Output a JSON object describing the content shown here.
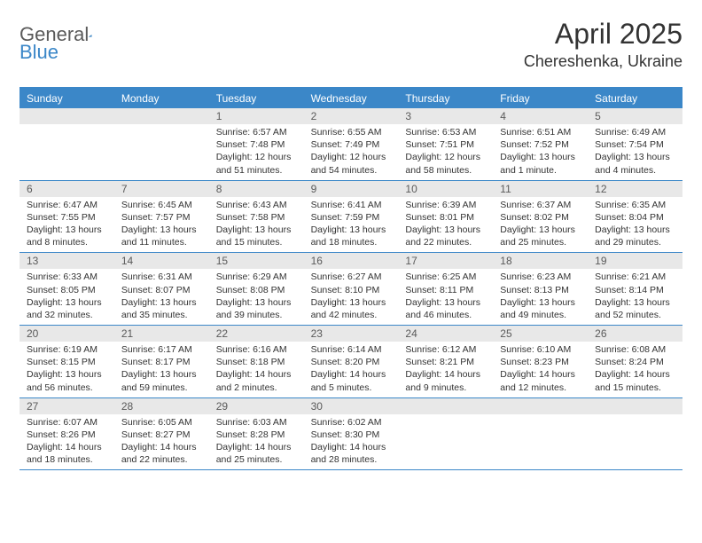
{
  "logo": {
    "word1": "General",
    "word2": "Blue"
  },
  "title": "April 2025",
  "location": "Chereshenka, Ukraine",
  "colors": {
    "header_bg": "#3b87c8",
    "header_text": "#ffffff",
    "daynum_bg": "#e8e8e8",
    "text": "#333333",
    "logo_gray": "#5a5a5a",
    "logo_blue": "#3b87c8"
  },
  "day_names": [
    "Sunday",
    "Monday",
    "Tuesday",
    "Wednesday",
    "Thursday",
    "Friday",
    "Saturday"
  ],
  "weeks": [
    [
      {
        "num": "",
        "empty": true
      },
      {
        "num": "",
        "empty": true
      },
      {
        "num": "1",
        "sunrise": "Sunrise: 6:57 AM",
        "sunset": "Sunset: 7:48 PM",
        "daylight": "Daylight: 12 hours and 51 minutes."
      },
      {
        "num": "2",
        "sunrise": "Sunrise: 6:55 AM",
        "sunset": "Sunset: 7:49 PM",
        "daylight": "Daylight: 12 hours and 54 minutes."
      },
      {
        "num": "3",
        "sunrise": "Sunrise: 6:53 AM",
        "sunset": "Sunset: 7:51 PM",
        "daylight": "Daylight: 12 hours and 58 minutes."
      },
      {
        "num": "4",
        "sunrise": "Sunrise: 6:51 AM",
        "sunset": "Sunset: 7:52 PM",
        "daylight": "Daylight: 13 hours and 1 minute."
      },
      {
        "num": "5",
        "sunrise": "Sunrise: 6:49 AM",
        "sunset": "Sunset: 7:54 PM",
        "daylight": "Daylight: 13 hours and 4 minutes."
      }
    ],
    [
      {
        "num": "6",
        "sunrise": "Sunrise: 6:47 AM",
        "sunset": "Sunset: 7:55 PM",
        "daylight": "Daylight: 13 hours and 8 minutes."
      },
      {
        "num": "7",
        "sunrise": "Sunrise: 6:45 AM",
        "sunset": "Sunset: 7:57 PM",
        "daylight": "Daylight: 13 hours and 11 minutes."
      },
      {
        "num": "8",
        "sunrise": "Sunrise: 6:43 AM",
        "sunset": "Sunset: 7:58 PM",
        "daylight": "Daylight: 13 hours and 15 minutes."
      },
      {
        "num": "9",
        "sunrise": "Sunrise: 6:41 AM",
        "sunset": "Sunset: 7:59 PM",
        "daylight": "Daylight: 13 hours and 18 minutes."
      },
      {
        "num": "10",
        "sunrise": "Sunrise: 6:39 AM",
        "sunset": "Sunset: 8:01 PM",
        "daylight": "Daylight: 13 hours and 22 minutes."
      },
      {
        "num": "11",
        "sunrise": "Sunrise: 6:37 AM",
        "sunset": "Sunset: 8:02 PM",
        "daylight": "Daylight: 13 hours and 25 minutes."
      },
      {
        "num": "12",
        "sunrise": "Sunrise: 6:35 AM",
        "sunset": "Sunset: 8:04 PM",
        "daylight": "Daylight: 13 hours and 29 minutes."
      }
    ],
    [
      {
        "num": "13",
        "sunrise": "Sunrise: 6:33 AM",
        "sunset": "Sunset: 8:05 PM",
        "daylight": "Daylight: 13 hours and 32 minutes."
      },
      {
        "num": "14",
        "sunrise": "Sunrise: 6:31 AM",
        "sunset": "Sunset: 8:07 PM",
        "daylight": "Daylight: 13 hours and 35 minutes."
      },
      {
        "num": "15",
        "sunrise": "Sunrise: 6:29 AM",
        "sunset": "Sunset: 8:08 PM",
        "daylight": "Daylight: 13 hours and 39 minutes."
      },
      {
        "num": "16",
        "sunrise": "Sunrise: 6:27 AM",
        "sunset": "Sunset: 8:10 PM",
        "daylight": "Daylight: 13 hours and 42 minutes."
      },
      {
        "num": "17",
        "sunrise": "Sunrise: 6:25 AM",
        "sunset": "Sunset: 8:11 PM",
        "daylight": "Daylight: 13 hours and 46 minutes."
      },
      {
        "num": "18",
        "sunrise": "Sunrise: 6:23 AM",
        "sunset": "Sunset: 8:13 PM",
        "daylight": "Daylight: 13 hours and 49 minutes."
      },
      {
        "num": "19",
        "sunrise": "Sunrise: 6:21 AM",
        "sunset": "Sunset: 8:14 PM",
        "daylight": "Daylight: 13 hours and 52 minutes."
      }
    ],
    [
      {
        "num": "20",
        "sunrise": "Sunrise: 6:19 AM",
        "sunset": "Sunset: 8:15 PM",
        "daylight": "Daylight: 13 hours and 56 minutes."
      },
      {
        "num": "21",
        "sunrise": "Sunrise: 6:17 AM",
        "sunset": "Sunset: 8:17 PM",
        "daylight": "Daylight: 13 hours and 59 minutes."
      },
      {
        "num": "22",
        "sunrise": "Sunrise: 6:16 AM",
        "sunset": "Sunset: 8:18 PM",
        "daylight": "Daylight: 14 hours and 2 minutes."
      },
      {
        "num": "23",
        "sunrise": "Sunrise: 6:14 AM",
        "sunset": "Sunset: 8:20 PM",
        "daylight": "Daylight: 14 hours and 5 minutes."
      },
      {
        "num": "24",
        "sunrise": "Sunrise: 6:12 AM",
        "sunset": "Sunset: 8:21 PM",
        "daylight": "Daylight: 14 hours and 9 minutes."
      },
      {
        "num": "25",
        "sunrise": "Sunrise: 6:10 AM",
        "sunset": "Sunset: 8:23 PM",
        "daylight": "Daylight: 14 hours and 12 minutes."
      },
      {
        "num": "26",
        "sunrise": "Sunrise: 6:08 AM",
        "sunset": "Sunset: 8:24 PM",
        "daylight": "Daylight: 14 hours and 15 minutes."
      }
    ],
    [
      {
        "num": "27",
        "sunrise": "Sunrise: 6:07 AM",
        "sunset": "Sunset: 8:26 PM",
        "daylight": "Daylight: 14 hours and 18 minutes."
      },
      {
        "num": "28",
        "sunrise": "Sunrise: 6:05 AM",
        "sunset": "Sunset: 8:27 PM",
        "daylight": "Daylight: 14 hours and 22 minutes."
      },
      {
        "num": "29",
        "sunrise": "Sunrise: 6:03 AM",
        "sunset": "Sunset: 8:28 PM",
        "daylight": "Daylight: 14 hours and 25 minutes."
      },
      {
        "num": "30",
        "sunrise": "Sunrise: 6:02 AM",
        "sunset": "Sunset: 8:30 PM",
        "daylight": "Daylight: 14 hours and 28 minutes."
      },
      {
        "num": "",
        "empty": true
      },
      {
        "num": "",
        "empty": true
      },
      {
        "num": "",
        "empty": true
      }
    ]
  ]
}
